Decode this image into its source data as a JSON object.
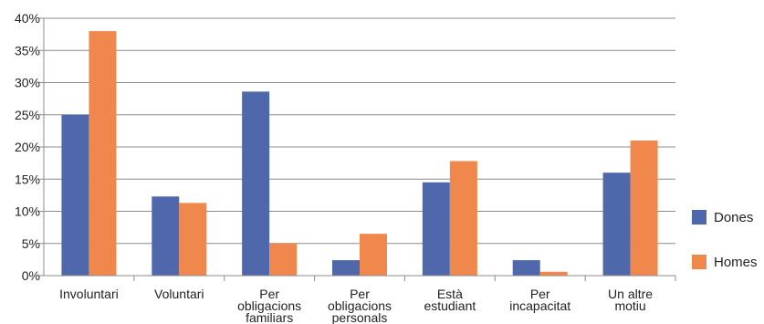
{
  "chart_data": {
    "type": "bar",
    "title": "",
    "xlabel": "",
    "ylabel": "",
    "ylim": [
      0,
      40
    ],
    "yticks": [
      "0%",
      "5%",
      "10%",
      "15%",
      "20%",
      "25%",
      "30%",
      "35%",
      "40%"
    ],
    "grid": true,
    "legend_position": "right",
    "categories": [
      [
        "Involuntari"
      ],
      [
        "Voluntari"
      ],
      [
        "Per",
        "obligacions",
        "familiars"
      ],
      [
        "Per",
        "obligacions",
        "personals"
      ],
      [
        "Està",
        "estudiant"
      ],
      [
        "Per",
        "incapacitat"
      ],
      [
        "Un altre",
        "motiu"
      ]
    ],
    "series": [
      {
        "name": "Dones",
        "color": "#4f68ac",
        "values": [
          25.0,
          12.3,
          28.6,
          2.4,
          14.5,
          2.4,
          16.0
        ]
      },
      {
        "name": "Homes",
        "color": "#f0874c",
        "values": [
          38.0,
          11.3,
          5.0,
          6.5,
          17.8,
          0.6,
          21.0
        ]
      }
    ]
  }
}
